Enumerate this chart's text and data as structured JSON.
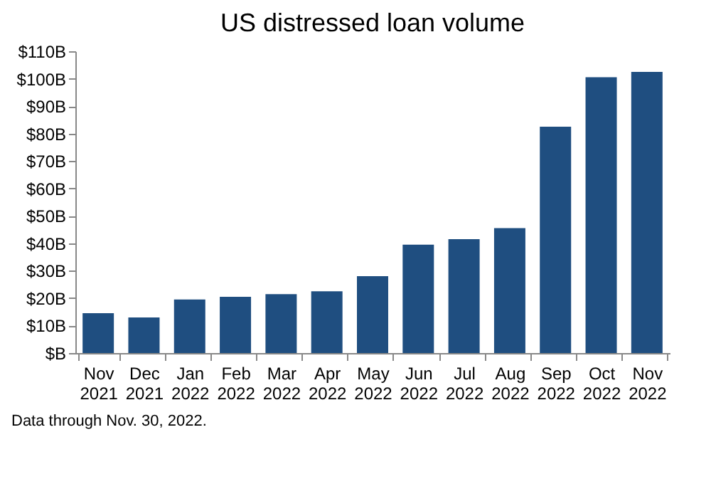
{
  "chart_data": {
    "type": "bar",
    "title": "US distressed loan volume",
    "categories": [
      "Nov 2021",
      "Dec 2021",
      "Jan 2022",
      "Feb 2022",
      "Mar 2022",
      "Apr 2022",
      "May 2022",
      "Jun 2022",
      "Jul 2022",
      "Aug 2022",
      "Sep 2022",
      "Oct 2022",
      "Nov 2022"
    ],
    "values": [
      14.5,
      13,
      19.5,
      20.5,
      21.5,
      22.5,
      28,
      39.5,
      41.5,
      45.5,
      82.5,
      100.5,
      102.5
    ],
    "color": "#1f4e80",
    "ylim": [
      0,
      110
    ],
    "yticks": [
      {
        "value": 0,
        "label": "$B"
      },
      {
        "value": 10,
        "label": "$10B"
      },
      {
        "value": 20,
        "label": "$20B"
      },
      {
        "value": 30,
        "label": "$30B"
      },
      {
        "value": 40,
        "label": "$40B"
      },
      {
        "value": 50,
        "label": "$50B"
      },
      {
        "value": 60,
        "label": "$60B"
      },
      {
        "value": 70,
        "label": "$70B"
      },
      {
        "value": 80,
        "label": "$80B"
      },
      {
        "value": 90,
        "label": "$90B"
      },
      {
        "value": 100,
        "label": "$100B"
      },
      {
        "value": 110,
        "label": "$110B"
      }
    ],
    "grid": false,
    "annotations": [
      "Data through Nov. 30, 2022."
    ]
  }
}
